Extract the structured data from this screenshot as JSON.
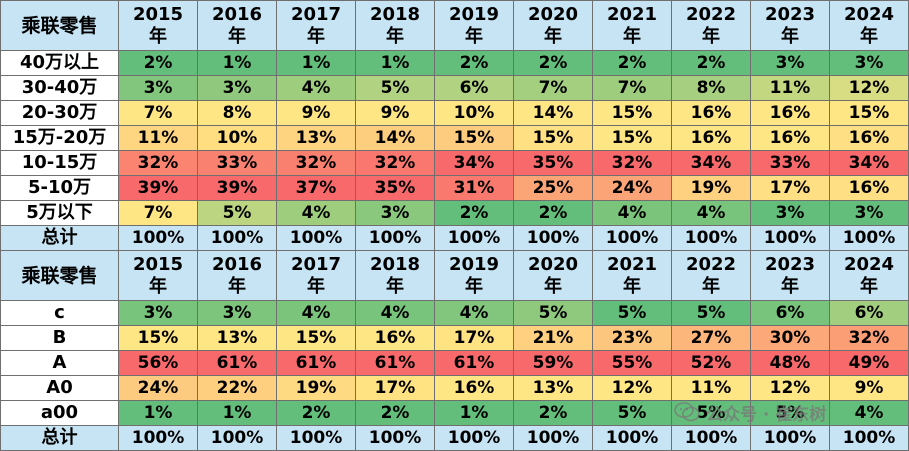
{
  "palette": {
    "header_bg": "#c6e4f3",
    "low": "#63be7b",
    "mid": "#ffe684",
    "high": "#f8696b"
  },
  "year_suffix": "年",
  "tables": [
    {
      "title": "乘联零售",
      "years": [
        "2015",
        "2016",
        "2017",
        "2018",
        "2019",
        "2020",
        "2021",
        "2022",
        "2023",
        "2024"
      ],
      "rows": [
        {
          "label": "40万以上",
          "values": [
            "2%",
            "1%",
            "1%",
            "1%",
            "2%",
            "2%",
            "2%",
            "2%",
            "3%",
            "3%"
          ]
        },
        {
          "label": "30-40万",
          "values": [
            "3%",
            "3%",
            "4%",
            "5%",
            "6%",
            "7%",
            "7%",
            "8%",
            "11%",
            "12%"
          ]
        },
        {
          "label": "20-30万",
          "values": [
            "7%",
            "8%",
            "9%",
            "9%",
            "10%",
            "14%",
            "15%",
            "16%",
            "16%",
            "15%"
          ]
        },
        {
          "label": "15万-20万",
          "values": [
            "11%",
            "10%",
            "13%",
            "14%",
            "15%",
            "15%",
            "15%",
            "16%",
            "16%",
            "16%"
          ]
        },
        {
          "label": "10-15万",
          "values": [
            "32%",
            "33%",
            "32%",
            "32%",
            "34%",
            "35%",
            "32%",
            "34%",
            "33%",
            "34%"
          ]
        },
        {
          "label": "5-10万",
          "values": [
            "39%",
            "39%",
            "37%",
            "35%",
            "31%",
            "25%",
            "24%",
            "19%",
            "17%",
            "16%"
          ]
        },
        {
          "label": "5万以下",
          "values": [
            "7%",
            "5%",
            "4%",
            "3%",
            "2%",
            "2%",
            "4%",
            "4%",
            "3%",
            "3%"
          ]
        }
      ],
      "total": {
        "label": "总计",
        "values": [
          "100%",
          "100%",
          "100%",
          "100%",
          "100%",
          "100%",
          "100%",
          "100%",
          "100%",
          "100%"
        ]
      }
    },
    {
      "title": "乘联零售",
      "years": [
        "2015",
        "2016",
        "2017",
        "2018",
        "2019",
        "2020",
        "2021",
        "2022",
        "2023",
        "2024"
      ],
      "rows": [
        {
          "label": "c",
          "values": [
            "3%",
            "3%",
            "4%",
            "4%",
            "4%",
            "5%",
            "5%",
            "5%",
            "6%",
            "6%"
          ]
        },
        {
          "label": "B",
          "values": [
            "15%",
            "13%",
            "15%",
            "16%",
            "17%",
            "21%",
            "23%",
            "27%",
            "30%",
            "32%"
          ]
        },
        {
          "label": "A",
          "values": [
            "56%",
            "61%",
            "61%",
            "61%",
            "61%",
            "59%",
            "55%",
            "52%",
            "48%",
            "49%"
          ]
        },
        {
          "label": "A0",
          "values": [
            "24%",
            "22%",
            "19%",
            "17%",
            "16%",
            "13%",
            "12%",
            "11%",
            "12%",
            "9%"
          ]
        },
        {
          "label": "a00",
          "values": [
            "1%",
            "1%",
            "2%",
            "2%",
            "1%",
            "2%",
            "5%",
            "5%",
            "5%",
            "4%"
          ]
        }
      ],
      "total": {
        "label": "总计",
        "values": [
          "100%",
          "100%",
          "100%",
          "100%",
          "100%",
          "100%",
          "100%",
          "100%",
          "100%",
          "100%"
        ]
      }
    }
  ],
  "watermark": {
    "text": "公众号 · 崔东树",
    "icon": "wechat-icon"
  }
}
